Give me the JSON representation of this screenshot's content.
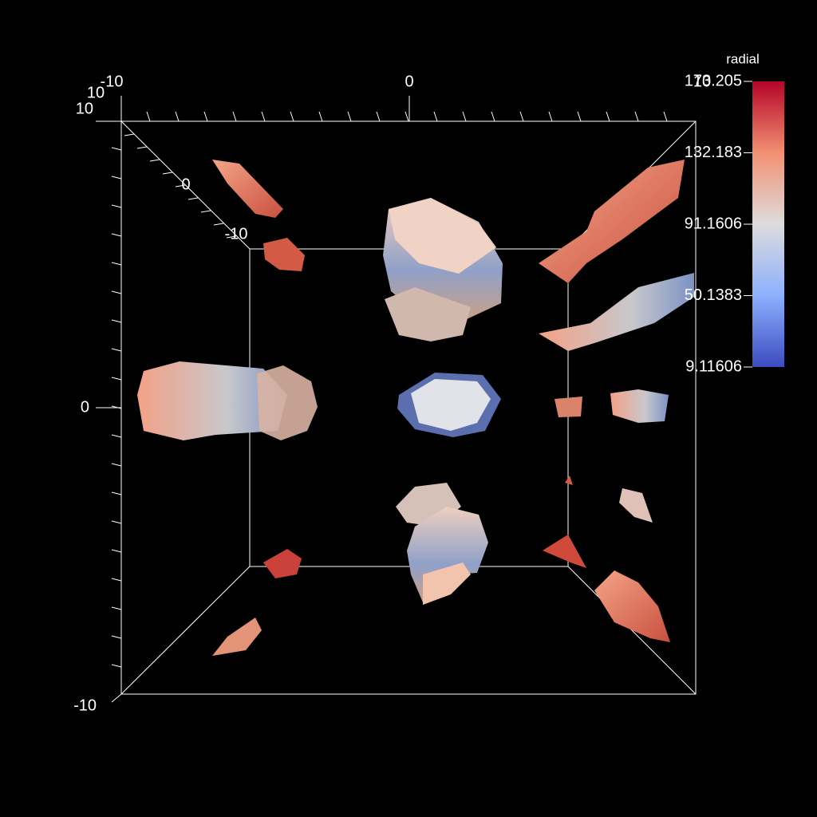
{
  "colorbar": {
    "title": "radial",
    "ticks": [
      "173.205",
      "132.183",
      "91.1606",
      "50.1383",
      "9.11606"
    ]
  },
  "axes": {
    "x_labels": [
      "-10",
      "0",
      "10"
    ],
    "y_labels": [
      "10",
      "0",
      "-10"
    ],
    "z_labels": [
      "10",
      "0",
      "-10"
    ]
  }
}
